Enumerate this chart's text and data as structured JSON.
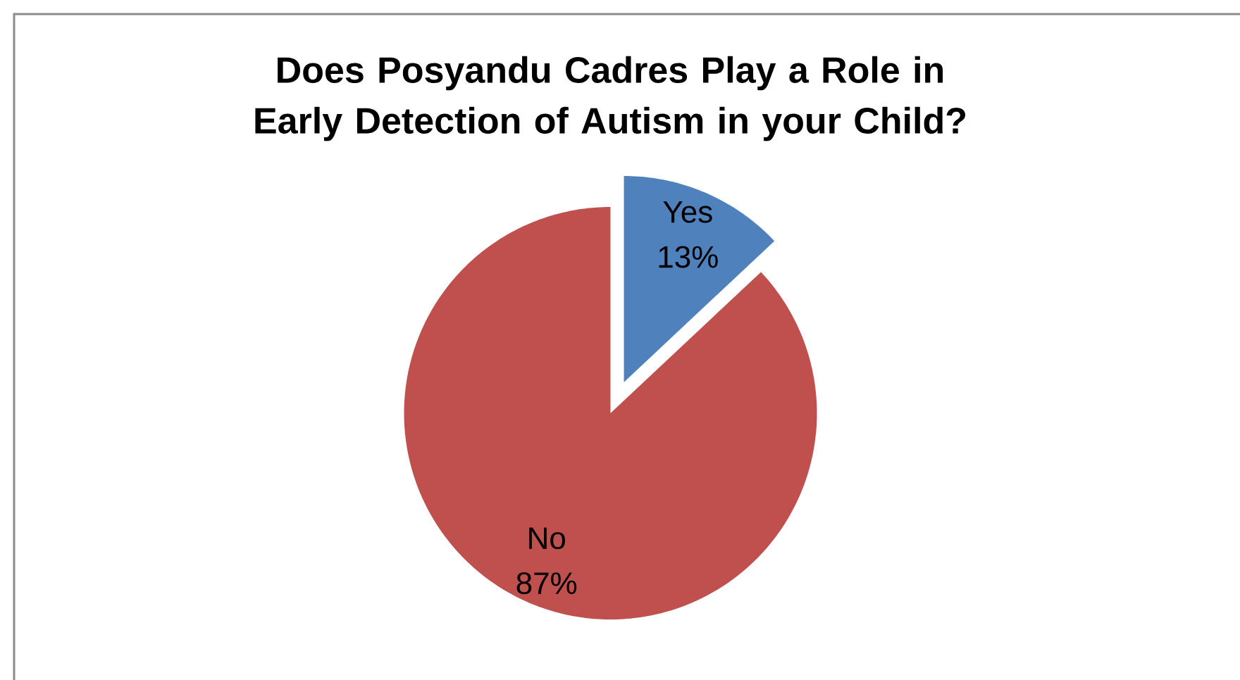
{
  "chart_data": {
    "type": "pie",
    "title": "Does Posyandu Cadres Play a Role in Early Detection of Autism in your Child?",
    "categories": [
      "Yes",
      "No"
    ],
    "values": [
      13,
      87
    ],
    "colors": [
      "#4f81bd",
      "#c0504d"
    ],
    "value_labels": [
      "13%",
      "87%"
    ]
  }
}
